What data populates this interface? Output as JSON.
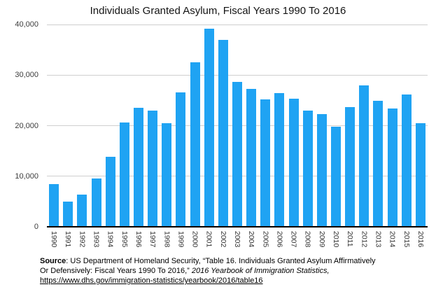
{
  "chart_data": {
    "type": "bar",
    "title": "Individuals Granted Asylum, Fiscal Years 1990 To 2016",
    "xlabel": "",
    "ylabel": "",
    "categories": [
      "1990",
      "1991",
      "1992",
      "1993",
      "1994",
      "1995",
      "1996",
      "1997",
      "1998",
      "1999",
      "2000",
      "2001",
      "2002",
      "2003",
      "2004",
      "2005",
      "2006",
      "2007",
      "2008",
      "2009",
      "2010",
      "2011",
      "2012",
      "2013",
      "2014",
      "2015",
      "2016"
    ],
    "values": [
      8472,
      5035,
      6310,
      9615,
      13836,
      20646,
      23534,
      22939,
      20511,
      26578,
      32542,
      39146,
      36894,
      28714,
      27321,
      25257,
      26389,
      25270,
      22930,
      22219,
      19770,
      23669,
      28026,
      24945,
      23374,
      26124,
      20455
    ],
    "ylim": [
      0,
      40000
    ],
    "yticks": [
      0,
      10000,
      20000,
      30000,
      40000
    ],
    "ytick_labels": [
      "0",
      "10,000",
      "20,000",
      "30,000",
      "40,000"
    ],
    "grid": "horizontal",
    "legend": "none",
    "bar_color": "#1fa3f3",
    "gridline_color": "#cfcfcf",
    "axis_color": "#000000"
  },
  "source": {
    "lines": [
      [
        {
          "text": "Source",
          "bold": true
        },
        {
          "text": ": US Department of Homeland Security, “Table 16. Individuals Granted Asylum Affirmatively"
        }
      ],
      [
        {
          "text": "Or Defensively: Fiscal Years 1990 To 2016,”  "
        },
        {
          "text": "2016 Yearbook of Immigration Statistics,",
          "italic": true
        }
      ],
      [
        {
          "text": "https://www.dhs.gov/immigration-statistics/yearbook/2016/table16",
          "link": true
        }
      ]
    ]
  }
}
